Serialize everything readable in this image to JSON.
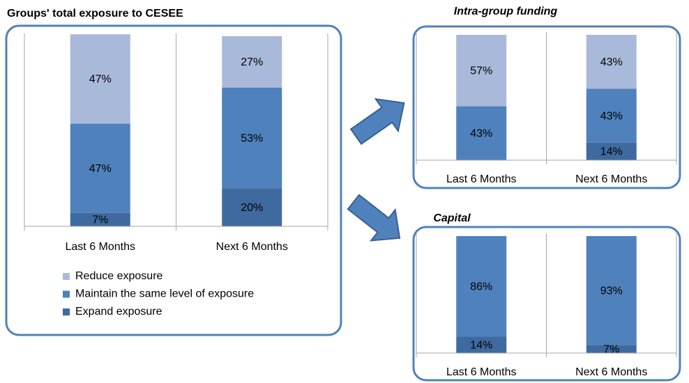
{
  "chart_data": [
    {
      "type": "bar",
      "stacked": true,
      "title": "Groups' total exposure to CESEE",
      "categories": [
        "Last 6 Months",
        "Next 6 Months"
      ],
      "ylim": [
        0,
        100
      ],
      "legend": "bottom",
      "series": [
        {
          "name": "Expand exposure",
          "color": "#3e6aa0",
          "values": [
            7,
            20
          ],
          "value_labels": [
            "7%",
            "20%"
          ]
        },
        {
          "name": "Maintain the same level of exposure",
          "color": "#4f81bd",
          "values": [
            47,
            53
          ],
          "value_labels": [
            "47%",
            "53%"
          ]
        },
        {
          "name": "Reduce exposure",
          "color": "#a9b9d9",
          "values": [
            47,
            27
          ],
          "value_labels": [
            "47%",
            "27%"
          ]
        }
      ]
    },
    {
      "type": "bar",
      "stacked": true,
      "title": "Intra-group funding",
      "categories": [
        "Last 6 Months",
        "Next 6 Months"
      ],
      "ylim": [
        0,
        100
      ],
      "series": [
        {
          "color": "#3e6aa0",
          "values": [
            null,
            14
          ],
          "value_labels": [
            null,
            "14%"
          ]
        },
        {
          "color": "#4f81bd",
          "values": [
            43,
            43
          ],
          "value_labels": [
            "43%",
            "43%"
          ]
        },
        {
          "color": "#a9b9d9",
          "values": [
            57,
            43
          ],
          "value_labels": [
            "57%",
            "43%"
          ]
        }
      ]
    },
    {
      "type": "bar",
      "stacked": true,
      "title": "Capital",
      "categories": [
        "Last 6 Months",
        "Next 6 Months"
      ],
      "ylim": [
        0,
        100
      ],
      "series": [
        {
          "color": "#3e6aa0",
          "values": [
            14,
            7
          ],
          "value_labels": [
            "14%",
            "7%"
          ]
        },
        {
          "color": "#4f81bd",
          "values": [
            86,
            93
          ],
          "value_labels": [
            "86%",
            "93%"
          ]
        }
      ]
    }
  ]
}
